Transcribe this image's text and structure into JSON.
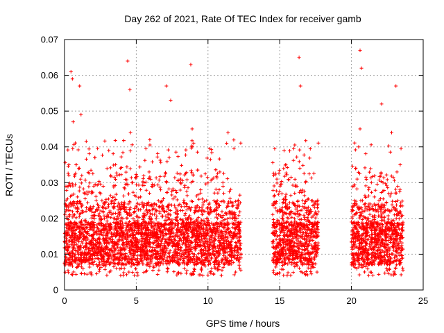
{
  "chart_data": {
    "type": "scatter",
    "title": "Day 262 of 2021, Rate Of TEC Index for receiver gamb",
    "xlabel": "GPS time / hours",
    "ylabel": "ROTI / TECUs",
    "xlim": [
      0,
      25
    ],
    "ylim": [
      0,
      0.07
    ],
    "x_ticks": [
      0,
      5,
      10,
      15,
      20,
      25
    ],
    "x_tick_labels": [
      "0",
      "5",
      "10",
      "15",
      "20",
      "25"
    ],
    "y_ticks": [
      0,
      0.01,
      0.02,
      0.03,
      0.04,
      0.05,
      0.06,
      0.07
    ],
    "y_tick_labels": [
      "0",
      "0.01",
      "0.02",
      "0.03",
      "0.04",
      "0.05",
      "0.06",
      "0.07"
    ],
    "grid": true,
    "marker": "+",
    "color": "#ff0000",
    "data_intervals_hours": [
      [
        0,
        12.3
      ],
      [
        14.5,
        17.7
      ],
      [
        20.0,
        23.6
      ]
    ],
    "series": [
      {
        "name": "ROTI",
        "x": [
          0.1,
          0.2,
          0.3,
          0.4,
          0.5,
          0.6,
          0.7,
          0.8,
          0.9,
          1.0,
          1.1,
          1.2,
          1.3,
          1.5,
          1.7,
          1.9,
          2.1,
          2.3,
          2.5,
          2.7,
          2.9,
          3.1,
          3.3,
          3.5,
          3.7,
          3.9,
          4.1,
          4.3,
          4.5,
          4.6,
          4.7,
          4.9,
          5.1,
          5.3,
          5.5,
          5.7,
          5.9,
          6.1,
          6.3,
          6.5,
          6.7,
          6.9,
          7.1,
          7.3,
          7.5,
          7.7,
          7.9,
          8.1,
          8.3,
          8.5,
          8.7,
          8.9,
          9.1,
          9.3,
          9.5,
          9.7,
          9.9,
          10.1,
          10.3,
          10.5,
          10.7,
          10.9,
          11.1,
          11.3,
          11.5,
          11.7,
          11.9,
          12.1,
          14.6,
          14.8,
          15.0,
          15.2,
          15.4,
          15.6,
          15.8,
          16.0,
          16.2,
          16.4,
          16.5,
          16.6,
          16.8,
          17.0,
          17.2,
          17.4,
          17.6,
          20.0,
          20.2,
          20.4,
          20.5,
          20.6,
          20.8,
          21.0,
          21.2,
          21.4,
          21.6,
          21.8,
          22.0,
          22.2,
          22.4,
          22.6,
          22.8,
          23.0,
          23.2,
          23.4,
          0.45,
          0.55,
          1.05,
          1.15,
          4.4,
          4.55,
          7.1,
          7.4,
          8.8,
          8.9,
          11.4,
          16.35,
          16.45,
          20.6,
          20.7,
          22.1,
          23.1
        ],
        "y": [
          0.029,
          0.012,
          0.035,
          0.018,
          0.009,
          0.047,
          0.021,
          0.014,
          0.026,
          0.011,
          0.019,
          0.032,
          0.015,
          0.022,
          0.013,
          0.027,
          0.016,
          0.024,
          0.01,
          0.029,
          0.017,
          0.013,
          0.025,
          0.02,
          0.012,
          0.034,
          0.018,
          0.023,
          0.015,
          0.044,
          0.03,
          0.019,
          0.014,
          0.026,
          0.011,
          0.021,
          0.033,
          0.016,
          0.024,
          0.012,
          0.028,
          0.018,
          0.022,
          0.037,
          0.015,
          0.026,
          0.013,
          0.031,
          0.019,
          0.024,
          0.01,
          0.04,
          0.017,
          0.022,
          0.028,
          0.013,
          0.025,
          0.018,
          0.031,
          0.014,
          0.023,
          0.019,
          0.027,
          0.041,
          0.016,
          0.021,
          0.012,
          0.018,
          0.024,
          0.031,
          0.014,
          0.02,
          0.026,
          0.011,
          0.022,
          0.017,
          0.029,
          0.034,
          0.018,
          0.025,
          0.013,
          0.021,
          0.016,
          0.024,
          0.012,
          0.019,
          0.025,
          0.031,
          0.04,
          0.045,
          0.022,
          0.016,
          0.028,
          0.014,
          0.026,
          0.019,
          0.023,
          0.03,
          0.015,
          0.027,
          0.044,
          0.021,
          0.018,
          0.035,
          0.061,
          0.059,
          0.057,
          0.049,
          0.064,
          0.056,
          0.057,
          0.053,
          0.063,
          0.045,
          0.044,
          0.065,
          0.057,
          0.067,
          0.062,
          0.052,
          0.057
        ]
      }
    ]
  }
}
